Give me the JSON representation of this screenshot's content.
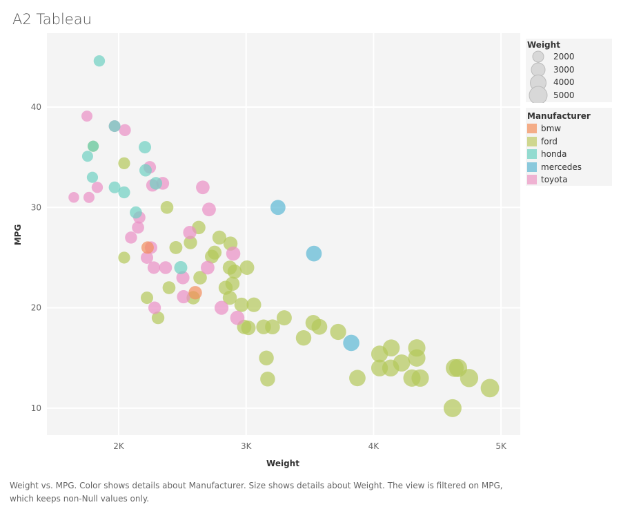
{
  "title": "A2 Tableau",
  "caption": "Weight vs. MPG.  Color shows details about Manufacturer.  Size shows details about Weight. The view is filtered on MPG, which keeps non-Null values only.",
  "size_legend": {
    "title": "Weight",
    "items": [
      "2000",
      "3000",
      "4000",
      "5000"
    ]
  },
  "color_legend": {
    "title": "Manufacturer",
    "items": [
      {
        "label": "bmw",
        "color": "#f4ad88"
      },
      {
        "label": "ford",
        "color": "#cfd78f"
      },
      {
        "label": "honda",
        "color": "#93dbd0"
      },
      {
        "label": "mercedes",
        "color": "#8ac9dc"
      },
      {
        "label": "toyota",
        "color": "#efb2d2"
      }
    ]
  },
  "chart_data": {
    "type": "scatter",
    "xlabel": "Weight",
    "ylabel": "MPG",
    "xlim": [
      1450,
      5150
    ],
    "ylim": [
      6.6,
      47.5
    ],
    "xticks": [
      {
        "v": 2000,
        "label": "2K"
      },
      {
        "v": 3000,
        "label": "3K"
      },
      {
        "v": 4000,
        "label": "4K"
      },
      {
        "v": 5000,
        "label": "5K"
      }
    ],
    "yticks": [
      {
        "v": 10,
        "label": "10"
      },
      {
        "v": 20,
        "label": "20"
      },
      {
        "v": 30,
        "label": "30"
      },
      {
        "v": 40,
        "label": "40"
      }
    ],
    "grid": true,
    "size_field": "Weight",
    "color_field": "Manufacturer",
    "series": [
      {
        "name": "ford",
        "color": "#b3c85a",
        "points": [
          [
            1800,
            36.1
          ],
          [
            2043,
            34.4
          ],
          [
            2043,
            25.0
          ],
          [
            2379,
            30.0
          ],
          [
            2628,
            28.0
          ],
          [
            2563,
            26.5
          ],
          [
            2449,
            26.0
          ],
          [
            2790,
            27.0
          ],
          [
            2877,
            26.4
          ],
          [
            2753,
            25.5
          ],
          [
            2731,
            25.1
          ],
          [
            2872,
            24.0
          ],
          [
            3007,
            24.0
          ],
          [
            2910,
            23.6
          ],
          [
            2639,
            23.0
          ],
          [
            2395,
            22.0
          ],
          [
            2839,
            22.0
          ],
          [
            2893,
            22.4
          ],
          [
            2222,
            21.0
          ],
          [
            2585,
            21.0
          ],
          [
            2872,
            21.0
          ],
          [
            2964,
            20.3
          ],
          [
            3061,
            20.3
          ],
          [
            2309,
            19.0
          ],
          [
            2985,
            18.1
          ],
          [
            3018,
            18.0
          ],
          [
            3137,
            18.1
          ],
          [
            3207,
            18.1
          ],
          [
            3299,
            19.0
          ],
          [
            3451,
            17.0
          ],
          [
            3527,
            18.5
          ],
          [
            3575,
            18.1
          ],
          [
            3722,
            17.6
          ],
          [
            3159,
            15.0
          ],
          [
            3169,
            12.9
          ],
          [
            3873,
            13.0
          ],
          [
            4047,
            15.4
          ],
          [
            4139,
            16.0
          ],
          [
            4047,
            14.0
          ],
          [
            4134,
            14.0
          ],
          [
            4220,
            14.5
          ],
          [
            4339,
            16.0
          ],
          [
            4339,
            15.0
          ],
          [
            4301,
            13.0
          ],
          [
            4366,
            13.0
          ],
          [
            4637,
            14.0
          ],
          [
            4664,
            14.0
          ],
          [
            4750,
            13.0
          ],
          [
            4913,
            12.0
          ],
          [
            4620,
            10.0
          ]
        ]
      },
      {
        "name": "toyota",
        "color": "#ea8fc4",
        "points": [
          [
            1751,
            39.1
          ],
          [
            1648,
            31.0
          ],
          [
            1767,
            31.0
          ],
          [
            1832,
            32.0
          ],
          [
            1968,
            38.1
          ],
          [
            2049,
            37.7
          ],
          [
            2244,
            34.0
          ],
          [
            2265,
            32.2
          ],
          [
            2346,
            32.4
          ],
          [
            2660,
            32.0
          ],
          [
            2709,
            29.8
          ],
          [
            2162,
            29.0
          ],
          [
            2152,
            28.0
          ],
          [
            2097,
            27.0
          ],
          [
            2558,
            27.5
          ],
          [
            2254,
            26.0
          ],
          [
            2222,
            25.0
          ],
          [
            2276,
            24.0
          ],
          [
            2368,
            24.0
          ],
          [
            2504,
            23.0
          ],
          [
            2698,
            24.0
          ],
          [
            2899,
            25.4
          ],
          [
            2509,
            21.1
          ],
          [
            2282,
            20.0
          ],
          [
            2807,
            20.0
          ],
          [
            2931,
            19.0
          ]
        ]
      },
      {
        "name": "honda",
        "color": "#6ed0c2",
        "points": [
          [
            1848,
            44.6
          ],
          [
            1756,
            35.1
          ],
          [
            1794,
            33.0
          ],
          [
            2043,
            31.5
          ],
          [
            1968,
            32.0
          ],
          [
            1968,
            38.1
          ],
          [
            2206,
            36.0
          ],
          [
            2211,
            33.7
          ],
          [
            2292,
            32.4
          ],
          [
            2135,
            29.5
          ],
          [
            2487,
            24.0
          ],
          [
            1800,
            36.1
          ]
        ]
      },
      {
        "name": "mercedes",
        "color": "#5bb8d4",
        "points": [
          [
            3250,
            30.0
          ],
          [
            3532,
            25.4
          ],
          [
            3825,
            16.5
          ]
        ]
      },
      {
        "name": "bmw",
        "color": "#f28e5c",
        "points": [
          [
            2227,
            26.0
          ],
          [
            2601,
            21.5
          ]
        ]
      }
    ]
  }
}
